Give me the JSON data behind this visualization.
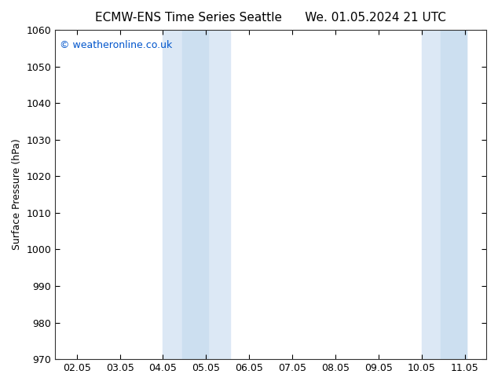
{
  "title_left": "ECMW-ENS Time Series Seattle",
  "title_right": "We. 01.05.2024 21 UTC",
  "ylabel": "Surface Pressure (hPa)",
  "ylim": [
    970,
    1060
  ],
  "yticks": [
    970,
    980,
    990,
    1000,
    1010,
    1020,
    1030,
    1040,
    1050,
    1060
  ],
  "xtick_labels": [
    "02.05",
    "03.05",
    "04.05",
    "05.05",
    "06.05",
    "07.05",
    "08.05",
    "09.05",
    "10.05",
    "11.05"
  ],
  "xtick_positions": [
    0,
    1,
    2,
    3,
    4,
    5,
    6,
    7,
    8,
    9
  ],
  "xlim": [
    -0.5,
    9.5
  ],
  "shaded_bands": [
    {
      "xmin": 2.0,
      "xmax": 2.5,
      "color": "#ddeeff"
    },
    {
      "xmin": 2.5,
      "xmax": 3.5,
      "color": "#cce0f5"
    },
    {
      "xmin": 8.0,
      "xmax": 8.5,
      "color": "#ddeeff"
    },
    {
      "xmin": 8.5,
      "xmax": 9.0,
      "color": "#cce0f5"
    }
  ],
  "watermark": "© weatheronline.co.uk",
  "watermark_color": "#0055cc",
  "background_color": "#ffffff",
  "plot_bg_color": "#ffffff",
  "title_fontsize": 11,
  "axis_label_fontsize": 9,
  "tick_fontsize": 9,
  "figsize": [
    6.34,
    4.9
  ],
  "dpi": 100
}
